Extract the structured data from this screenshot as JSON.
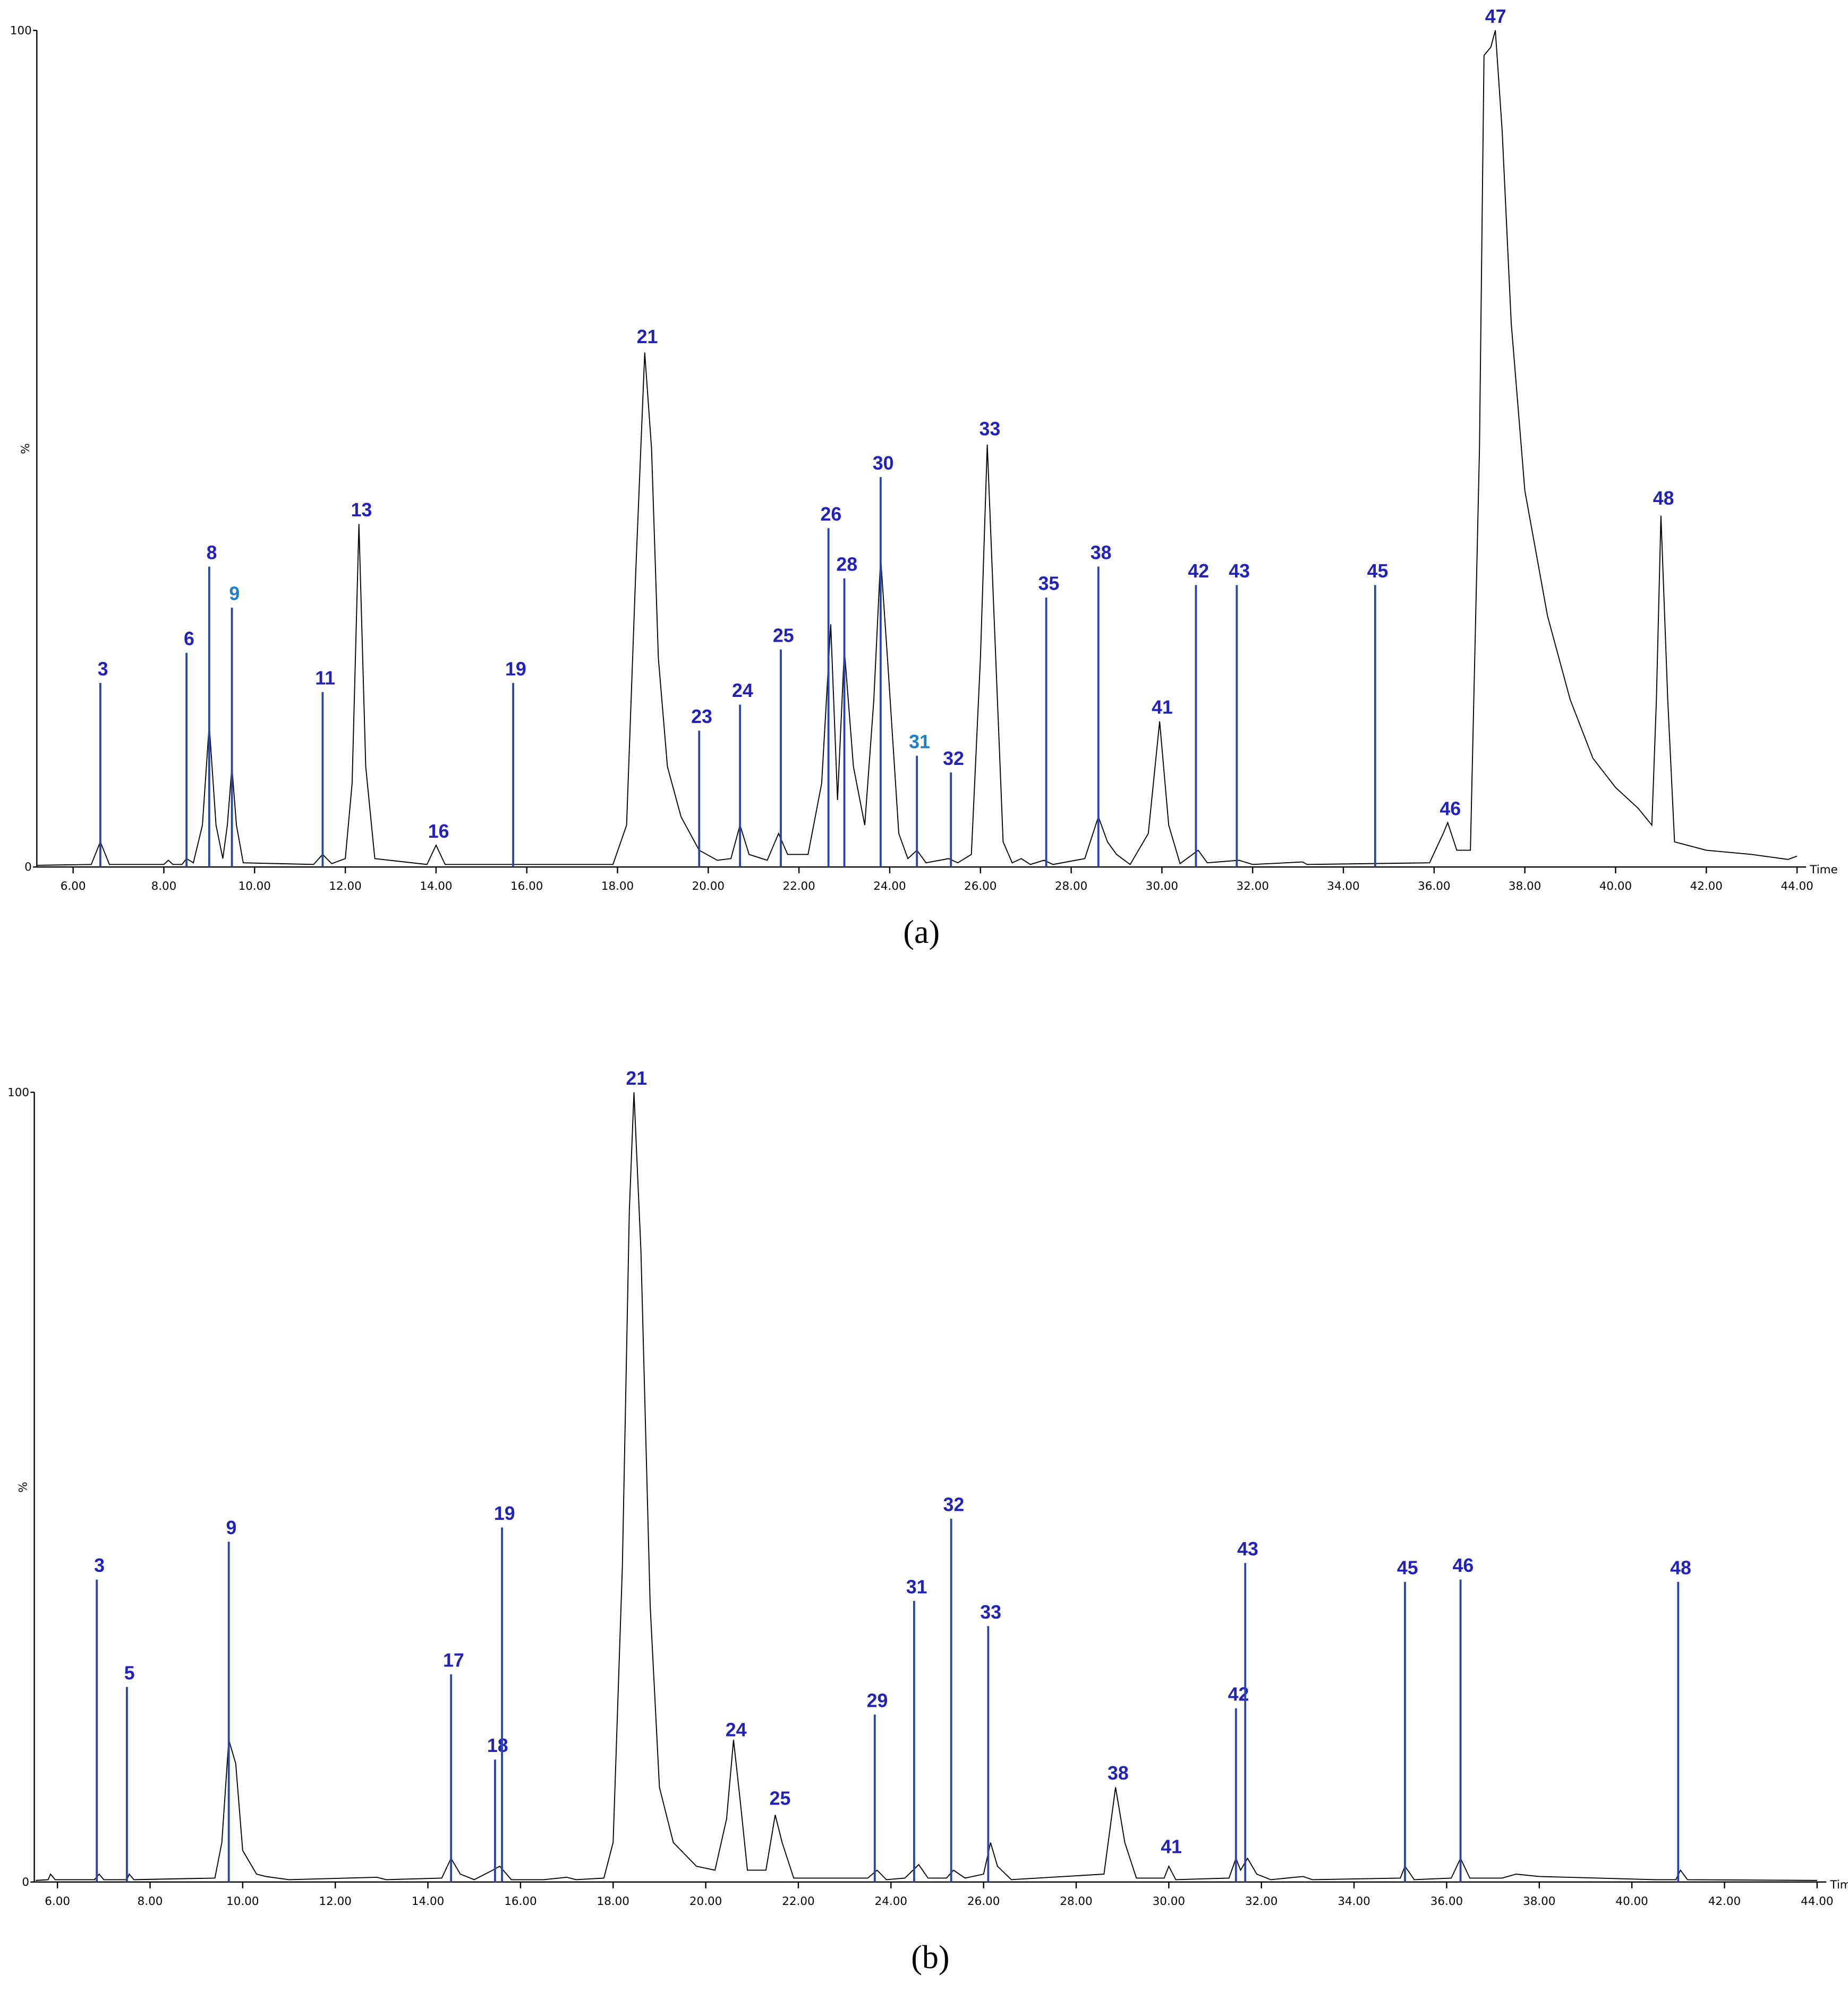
{
  "chart_data": [
    {
      "type": "line",
      "caption": "(a)",
      "x_label": "Time",
      "y_label": "%",
      "xlim": [
        5.2,
        44.2
      ],
      "ylim": [
        0,
        100
      ],
      "xticks": [
        {
          "value": 6,
          "label": "6.00"
        },
        {
          "value": 8,
          "label": "8.00"
        },
        {
          "value": 10,
          "label": "10.00"
        },
        {
          "value": 12,
          "label": "12.00"
        },
        {
          "value": 14,
          "label": "14.00"
        },
        {
          "value": 16,
          "label": "16.00"
        },
        {
          "value": 18,
          "label": "18.00"
        },
        {
          "value": 20,
          "label": "20.00"
        },
        {
          "value": 22,
          "label": "22.00"
        },
        {
          "value": 24,
          "label": "24.00"
        },
        {
          "value": 26,
          "label": "26.00"
        },
        {
          "value": 28,
          "label": "28.00"
        },
        {
          "value": 30,
          "label": "30.00"
        },
        {
          "value": 32,
          "label": "32.00"
        },
        {
          "value": 34,
          "label": "34.00"
        },
        {
          "value": 36,
          "label": "36.00"
        },
        {
          "value": 38,
          "label": "38.00"
        },
        {
          "value": 40,
          "label": "40.00"
        },
        {
          "value": 42,
          "label": "42.00"
        },
        {
          "value": 44,
          "label": "44.00"
        }
      ],
      "yticks": [
        0,
        100
      ],
      "color": "#000000",
      "annotation_color": "#2222b8",
      "line_color": "#2a45a8",
      "x": [
        5.2,
        6.4,
        6.6,
        6.8,
        8.0,
        8.1,
        8.2,
        8.4,
        8.5,
        8.65,
        8.85,
        9.0,
        9.15,
        9.3,
        9.4,
        9.5,
        9.6,
        9.75,
        11.3,
        11.5,
        11.7,
        12.0,
        12.15,
        12.3,
        12.45,
        12.65,
        13.8,
        14.0,
        14.2,
        17.9,
        18.2,
        18.4,
        18.6,
        18.75,
        18.9,
        19.1,
        19.4,
        19.8,
        20.2,
        20.5,
        20.7,
        20.9,
        21.3,
        21.55,
        21.75,
        22.2,
        22.5,
        22.7,
        22.85,
        23.0,
        23.2,
        23.45,
        23.65,
        23.8,
        23.95,
        24.2,
        24.4,
        24.6,
        24.8,
        25.3,
        25.5,
        25.8,
        26.0,
        26.15,
        26.3,
        26.5,
        26.7,
        26.9,
        27.1,
        27.4,
        27.6,
        28.3,
        28.6,
        28.8,
        29.0,
        29.3,
        29.7,
        29.95,
        30.15,
        30.4,
        30.8,
        31.0,
        31.7,
        32.0,
        33.1,
        33.2,
        35.9,
        36.2,
        36.3,
        36.5,
        36.8,
        37.0,
        37.1,
        37.25,
        37.35,
        37.5,
        37.7,
        38.0,
        38.5,
        39.0,
        39.5,
        40.0,
        40.5,
        40.8,
        40.9,
        41.0,
        41.15,
        41.3,
        42.0,
        43.0,
        43.8,
        44.0
      ],
      "values": [
        0.2,
        0.3,
        3,
        0.3,
        0.3,
        0.8,
        0.3,
        0.3,
        1,
        0.5,
        5,
        17,
        5,
        1,
        5,
        12,
        5,
        0.5,
        0.3,
        1.5,
        0.4,
        1,
        10,
        41,
        12,
        1,
        0.3,
        2.6,
        0.3,
        0.3,
        5,
        35,
        61.5,
        50,
        25,
        12,
        6,
        2,
        0.8,
        1,
        5,
        1.5,
        0.8,
        4,
        1.5,
        1.5,
        10,
        29,
        8,
        26,
        12,
        5,
        20,
        37,
        25,
        4,
        1,
        2,
        0.5,
        1,
        0.5,
        1.5,
        25,
        50.5,
        30,
        3,
        0.5,
        1,
        0.3,
        0.8,
        0.3,
        1,
        6,
        3,
        1.5,
        0.3,
        4,
        17.4,
        5,
        0.4,
        2,
        0.5,
        0.8,
        0.3,
        0.6,
        0.3,
        0.5,
        4,
        5.3,
        2,
        2,
        50,
        97,
        98,
        100,
        88,
        65,
        45,
        30,
        20,
        13,
        9.5,
        7,
        5,
        20,
        42,
        20,
        3,
        2,
        1.5,
        0.9,
        1.3
      ],
      "annotations": [
        {
          "text": "3",
          "x": 6.6,
          "y": 22,
          "line": true
        },
        {
          "text": "6",
          "x": 8.5,
          "y": 25.6,
          "line": true
        },
        {
          "text": "8",
          "x": 9.0,
          "y": 35.9,
          "line": true
        },
        {
          "text": "9",
          "x": 9.5,
          "y": 31,
          "line": true,
          "color": "#1e7ec8"
        },
        {
          "text": "11",
          "x": 11.5,
          "y": 20.9,
          "line": true
        },
        {
          "text": "13",
          "x": 12.3,
          "y": 41,
          "line": false
        },
        {
          "text": "16",
          "x": 14.0,
          "y": 2.6,
          "line": false
        },
        {
          "text": "19",
          "x": 15.7,
          "y": 22,
          "line": true
        },
        {
          "text": "21",
          "x": 18.6,
          "y": 61.7,
          "line": false
        },
        {
          "text": "23",
          "x": 19.8,
          "y": 16.3,
          "line": true
        },
        {
          "text": "24",
          "x": 20.7,
          "y": 19.4,
          "line": true
        },
        {
          "text": "25",
          "x": 21.6,
          "y": 26,
          "line": true
        },
        {
          "text": "26",
          "x": 22.65,
          "y": 40.5,
          "line": true
        },
        {
          "text": "28",
          "x": 23.0,
          "y": 34.5,
          "line": true
        },
        {
          "text": "30",
          "x": 23.8,
          "y": 46.6,
          "line": true
        },
        {
          "text": "31",
          "x": 24.6,
          "y": 13.3,
          "line": true,
          "color": "#1e7ec8"
        },
        {
          "text": "32",
          "x": 25.35,
          "y": 11.3,
          "line": true
        },
        {
          "text": "33",
          "x": 26.15,
          "y": 50.7,
          "line": false
        },
        {
          "text": "35",
          "x": 27.45,
          "y": 32.2,
          "line": true
        },
        {
          "text": "38",
          "x": 28.6,
          "y": 35.9,
          "line": true
        },
        {
          "text": "41",
          "x": 29.95,
          "y": 17.4,
          "line": false
        },
        {
          "text": "42",
          "x": 30.75,
          "y": 33.7,
          "line": true
        },
        {
          "text": "43",
          "x": 31.65,
          "y": 33.7,
          "line": true
        },
        {
          "text": "45",
          "x": 34.7,
          "y": 33.7,
          "line": true
        },
        {
          "text": "46",
          "x": 36.3,
          "y": 5.3,
          "line": false
        },
        {
          "text": "47",
          "x": 37.3,
          "y": 100,
          "line": false
        },
        {
          "text": "48",
          "x": 41.0,
          "y": 42.4,
          "line": false
        }
      ]
    },
    {
      "type": "line",
      "caption": "(b)",
      "x_label": "Time",
      "y_label": "%",
      "xlim": [
        5.5,
        44.2
      ],
      "ylim": [
        0,
        100
      ],
      "xticks": [
        {
          "value": 6,
          "label": "6.00"
        },
        {
          "value": 8,
          "label": "8.00"
        },
        {
          "value": 10,
          "label": "10.00"
        },
        {
          "value": 12,
          "label": "12.00"
        },
        {
          "value": 14,
          "label": "14.00"
        },
        {
          "value": 16,
          "label": "16.00"
        },
        {
          "value": 18,
          "label": "18.00"
        },
        {
          "value": 20,
          "label": "20.00"
        },
        {
          "value": 22,
          "label": "22.00"
        },
        {
          "value": 24,
          "label": "24.00"
        },
        {
          "value": 26,
          "label": "26.00"
        },
        {
          "value": 28,
          "label": "28.00"
        },
        {
          "value": 30,
          "label": "30.00"
        },
        {
          "value": 32,
          "label": "32.00"
        },
        {
          "value": 34,
          "label": "34.00"
        },
        {
          "value": 36,
          "label": "36.00"
        },
        {
          "value": 38,
          "label": "38.00"
        },
        {
          "value": 40,
          "label": "40.00"
        },
        {
          "value": 42,
          "label": "42.00"
        },
        {
          "value": 44,
          "label": "44.00"
        }
      ],
      "yticks": [
        0,
        100
      ],
      "color": "#000000",
      "annotation_color": "#2222b8",
      "line_color": "#2a45a8",
      "x": [
        5.53,
        5.8,
        5.85,
        5.95,
        6.8,
        6.9,
        7.0,
        7.5,
        7.55,
        7.65,
        9.4,
        9.55,
        9.7,
        9.85,
        10.0,
        10.3,
        10.5,
        11.0,
        12.9,
        13.1,
        14.3,
        14.5,
        14.7,
        15.0,
        15.4,
        15.55,
        15.7,
        15.8,
        16.5,
        17.0,
        17.2,
        17.8,
        18.0,
        18.2,
        18.35,
        18.45,
        18.6,
        18.8,
        19.0,
        19.3,
        19.8,
        20.2,
        20.45,
        20.6,
        20.75,
        20.9,
        21.3,
        21.5,
        21.65,
        21.9,
        23.5,
        23.7,
        23.9,
        24.3,
        24.6,
        24.8,
        25.2,
        25.35,
        25.6,
        26.0,
        26.15,
        26.3,
        26.6,
        28.6,
        28.85,
        29.05,
        29.3,
        29.9,
        30.0,
        30.15,
        31.3,
        31.45,
        31.55,
        31.7,
        31.9,
        32.2,
        32.9,
        33.1,
        35.0,
        35.1,
        35.3,
        36.1,
        36.3,
        36.5,
        37.2,
        37.5,
        38.0,
        40.5,
        40.95,
        41.05,
        41.2,
        44.0
      ],
      "values": [
        0.2,
        0.3,
        1,
        0.3,
        0.3,
        1,
        0.3,
        0.3,
        1,
        0.3,
        0.5,
        5,
        18,
        15,
        4,
        1,
        0.7,
        0.3,
        0.6,
        0.3,
        0.5,
        3,
        1,
        0.3,
        1.5,
        2,
        1,
        0.3,
        0.3,
        0.6,
        0.3,
        0.5,
        5,
        40,
        85,
        100,
        80,
        35,
        12,
        5,
        2,
        1.5,
        8,
        18,
        10,
        1.5,
        1.5,
        8.5,
        5,
        0.5,
        0.5,
        1.5,
        0.3,
        0.5,
        2.2,
        0.5,
        0.5,
        1.5,
        0.5,
        1,
        5,
        2,
        0.3,
        1,
        12,
        5,
        0.5,
        0.5,
        2,
        0.3,
        0.5,
        3,
        1.5,
        3,
        1,
        0.3,
        0.7,
        0.3,
        0.5,
        2,
        0.3,
        0.5,
        3,
        0.5,
        0.5,
        1,
        0.7,
        0.3,
        0.3,
        1.5,
        0.3,
        0.2
      ],
      "annotations": [
        {
          "text": "3",
          "x": 6.85,
          "y": 38.3,
          "line": true
        },
        {
          "text": "5",
          "x": 7.5,
          "y": 24.7,
          "line": true
        },
        {
          "text": "9",
          "x": 9.7,
          "y": 43.1,
          "line": true
        },
        {
          "text": "17",
          "x": 14.5,
          "y": 26.3,
          "line": true
        },
        {
          "text": "18",
          "x": 15.45,
          "y": 15.5,
          "line": true
        },
        {
          "text": "19",
          "x": 15.6,
          "y": 44.9,
          "line": true
        },
        {
          "text": "21",
          "x": 18.45,
          "y": 100,
          "line": false
        },
        {
          "text": "24",
          "x": 20.6,
          "y": 17.5,
          "line": false
        },
        {
          "text": "25",
          "x": 21.55,
          "y": 8.8,
          "line": false
        },
        {
          "text": "29",
          "x": 23.65,
          "y": 21.2,
          "line": true
        },
        {
          "text": "31",
          "x": 24.5,
          "y": 35.6,
          "line": true
        },
        {
          "text": "32",
          "x": 25.3,
          "y": 46,
          "line": true
        },
        {
          "text": "33",
          "x": 26.1,
          "y": 32.4,
          "line": true
        },
        {
          "text": "38",
          "x": 28.85,
          "y": 12,
          "line": false
        },
        {
          "text": "41",
          "x": 30.0,
          "y": 2.7,
          "line": false
        },
        {
          "text": "42",
          "x": 31.45,
          "y": 22,
          "line": true
        },
        {
          "text": "43",
          "x": 31.65,
          "y": 40.4,
          "line": true
        },
        {
          "text": "45",
          "x": 35.1,
          "y": 38,
          "line": true
        },
        {
          "text": "46",
          "x": 36.3,
          "y": 38.3,
          "line": true
        },
        {
          "text": "48",
          "x": 41.0,
          "y": 38,
          "line": true
        }
      ]
    }
  ]
}
